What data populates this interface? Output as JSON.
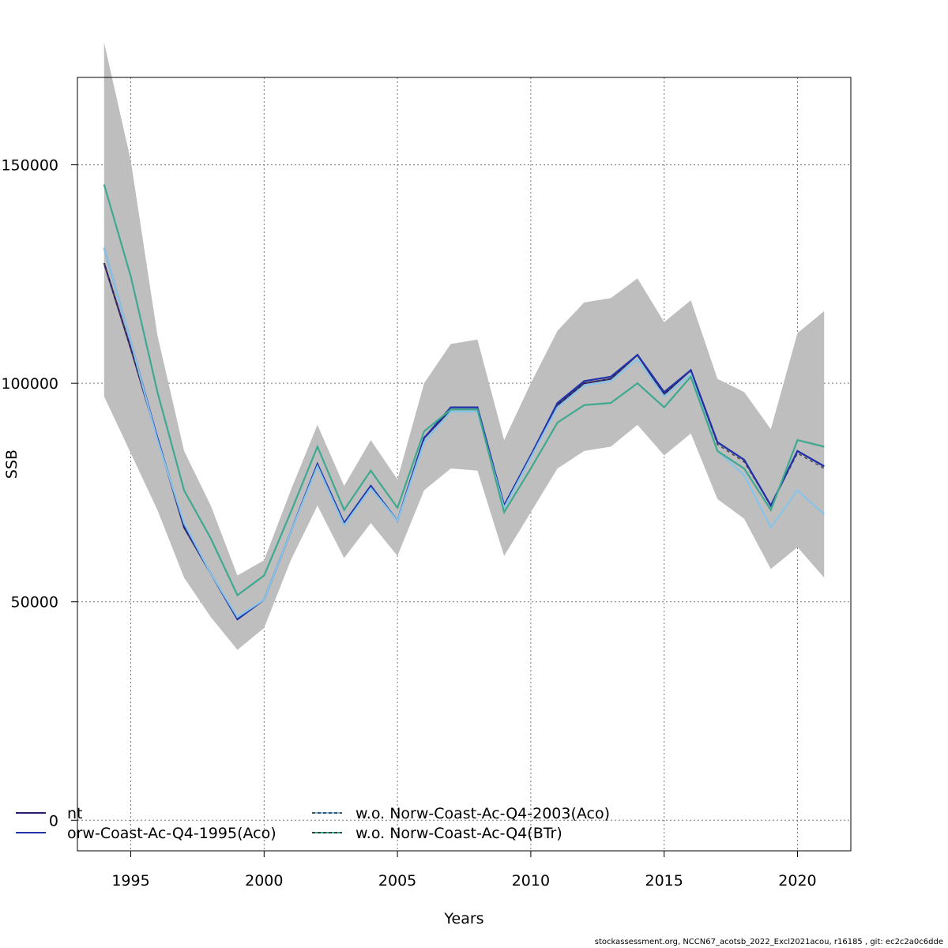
{
  "chart_data": {
    "type": "line",
    "xlabel": "Years",
    "ylabel": "SSB",
    "xlim": [
      1993,
      2022
    ],
    "ylim": [
      -7000,
      170000
    ],
    "xticks": [
      1995,
      2000,
      2005,
      2010,
      2015,
      2020
    ],
    "yticks": [
      0,
      50000,
      100000,
      150000
    ],
    "grid": true,
    "x": [
      1994,
      1995,
      1996,
      1997,
      1998,
      1999,
      2000,
      2001,
      2002,
      2003,
      2004,
      2005,
      2006,
      2007,
      2008,
      2009,
      2010,
      2011,
      2012,
      2013,
      2014,
      2015,
      2016,
      2017,
      2018,
      2019,
      2020,
      2021
    ],
    "confidence_band": {
      "lower": [
        97000,
        84000,
        71000,
        55500,
        46500,
        39000,
        44000,
        59500,
        72000,
        60000,
        68000,
        60500,
        75500,
        80500,
        80000,
        60500,
        70500,
        80500,
        84500,
        85500,
        90500,
        83500,
        88500,
        73500,
        69000,
        57500,
        62500,
        55500
      ],
      "upper": [
        178000,
        151000,
        111000,
        84500,
        72000,
        56000,
        59500,
        75500,
        90500,
        76500,
        87000,
        78000,
        100000,
        109000,
        110000,
        87000,
        100000,
        112000,
        118500,
        119500,
        124000,
        114000,
        119000,
        101000,
        98000,
        89500,
        111500,
        116500
      ]
    },
    "series": [
      {
        "values": [
          127500,
          108000,
          87500,
          67000,
          56500,
          46000,
          50500,
          66000,
          81500,
          68000,
          76500,
          68500,
          87500,
          94000,
          94000,
          72000,
          83500,
          95000,
          100000,
          101000,
          106500,
          97500,
          103000,
          86500,
          82500,
          72000,
          84500,
          81000
        ],
        "color": "#2b1a6e",
        "dash": ""
      },
      {
        "values": [
          127500,
          108000,
          87500,
          67000,
          56500,
          46000,
          50500,
          66000,
          81500,
          68000,
          76500,
          68500,
          87500,
          94000,
          94000,
          72000,
          83500,
          95000,
          100000,
          101000,
          106500,
          97500,
          103000,
          86000,
          82000,
          72000,
          84000,
          80500
        ],
        "color": "#444444",
        "dash": "4,4"
      },
      {
        "values": [
          131000,
          109500,
          87500,
          67500,
          56500,
          46000,
          50500,
          66000,
          81500,
          68000,
          76500,
          68500,
          87500,
          94500,
          94500,
          72000,
          83500,
          95500,
          100500,
          101500,
          106500,
          98000,
          103000,
          86500,
          82500,
          72000,
          84500,
          81000
        ],
        "color": "#2233aa",
        "dash": ""
      },
      {
        "values": [
          131000,
          109500,
          87000,
          68000,
          56500,
          46500,
          50500,
          66000,
          81000,
          67500,
          76000,
          68500,
          86500,
          93500,
          93500,
          71500,
          83000,
          94500,
          99500,
          100500,
          105500,
          97000,
          102000,
          84500,
          79000,
          67000,
          75500,
          70000
        ],
        "color": "#88c4e8",
        "dash": ""
      },
      {
        "values": [
          145500,
          124500,
          98000,
          75500,
          64500,
          51500,
          56000,
          70500,
          85500,
          71000,
          80000,
          71500,
          89000,
          94000,
          94000,
          70500,
          80500,
          91000,
          95000,
          95500,
          100000,
          94500,
          101500,
          84500,
          80500,
          71000,
          87000,
          85500
        ],
        "color": "#3fa98f",
        "dash": ""
      }
    ],
    "legend": [
      {
        "label": "nt",
        "color": "#2b1a6e",
        "dash": ""
      },
      {
        "label": "orw-Coast-Ac-Q4-1995(Aco)",
        "color": "#2233aa",
        "dash": ""
      },
      {
        "label": "w.o. Norw-Coast-Ac-Q4-2003(Aco)",
        "color": "#88c4e8",
        "dash": "4,3"
      },
      {
        "label": "w.o. Norw-Coast-Ac-Q4(BTr)",
        "color": "#3fa98f",
        "dash": "4,3"
      }
    ],
    "band_color": "#bebebe"
  },
  "footer": "stockassessment.org, NCCN67_acotsb_2022_Excl2021acou, r16185 , git: ec2c2a0c6dde"
}
